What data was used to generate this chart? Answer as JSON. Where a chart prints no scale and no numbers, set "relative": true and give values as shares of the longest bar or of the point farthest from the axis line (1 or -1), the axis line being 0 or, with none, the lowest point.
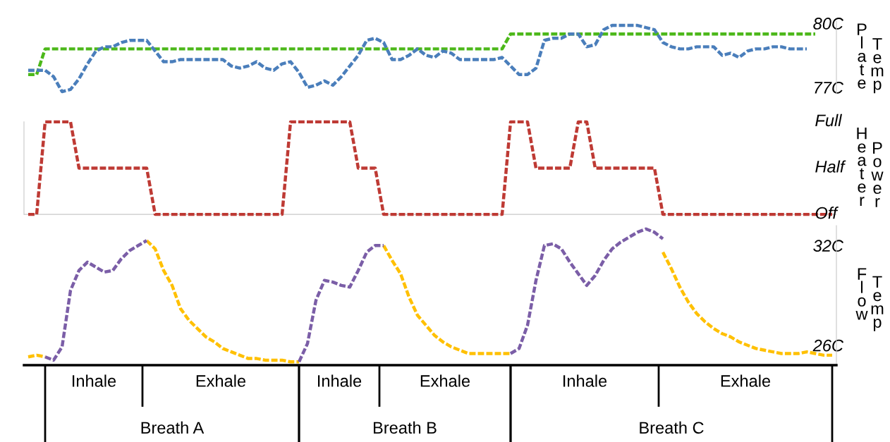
{
  "chart_data": [
    {
      "type": "line",
      "ylabel": "Plate Temp",
      "line_style": "dashed",
      "tick_labels": "y",
      "ylim": [
        76.7,
        80.1
      ],
      "yticks": [
        {
          "value": 77,
          "label": "77C"
        },
        {
          "value": 80,
          "label": "80C"
        }
      ],
      "categories": [
        null,
        null,
        null,
        null,
        null,
        null,
        null,
        null,
        null,
        null,
        null,
        null,
        null,
        null,
        null,
        null,
        null,
        null,
        null,
        null,
        null,
        null,
        null,
        null,
        null,
        null,
        null,
        null,
        null,
        null,
        null,
        null,
        null,
        null,
        null,
        null,
        null,
        null,
        null,
        null,
        null,
        null,
        null,
        null,
        null,
        null,
        null,
        null,
        null,
        null,
        null,
        null,
        null,
        null,
        null,
        null,
        null,
        null,
        null,
        null,
        null,
        null,
        null,
        null,
        null,
        null,
        null,
        null,
        null,
        null,
        null,
        null,
        null,
        null,
        null,
        null,
        null,
        null,
        null,
        null,
        null,
        null,
        null,
        null,
        null,
        null,
        null,
        null,
        null,
        null,
        null,
        null,
        null,
        null,
        null,
        null
      ],
      "series": [
        {
          "color": "#4cb81a",
          "values": [
            77.6,
            77.6,
            78.8,
            78.8,
            78.8,
            78.8,
            78.8,
            78.8,
            78.8,
            78.8,
            78.8,
            78.8,
            78.8,
            78.8,
            78.8,
            78.8,
            78.8,
            78.8,
            78.8,
            78.8,
            78.8,
            78.8,
            78.8,
            78.8,
            78.8,
            78.8,
            78.8,
            78.8,
            78.8,
            78.8,
            78.8,
            78.8,
            78.8,
            78.8,
            78.8,
            78.8,
            78.8,
            78.8,
            78.8,
            78.8,
            78.8,
            78.8,
            78.8,
            78.8,
            78.8,
            78.8,
            78.8,
            78.8,
            78.8,
            78.8,
            78.8,
            78.8,
            78.8,
            78.8,
            78.8,
            78.8,
            78.8,
            79.5,
            79.5,
            79.5,
            79.5,
            79.5,
            79.5,
            79.5,
            79.5,
            79.5,
            79.5,
            79.5,
            79.5,
            79.5,
            79.5,
            79.5,
            79.5,
            79.5,
            79.5,
            79.5,
            79.5,
            79.5,
            79.5,
            79.5,
            79.5,
            79.5,
            79.5,
            79.5,
            79.5,
            79.5,
            79.5,
            79.5,
            79.5,
            79.5,
            79.5,
            79.5,
            79.5,
            79.5,
            null,
            null
          ]
        },
        {
          "color": "#4a7ebb",
          "values": [
            77.8,
            77.8,
            77.8,
            77.5,
            76.8,
            76.9,
            77.4,
            78.1,
            78.7,
            78.9,
            78.9,
            79.1,
            79.2,
            79.2,
            79.2,
            78.7,
            78.2,
            78.2,
            78.3,
            78.3,
            78.3,
            78.3,
            78.3,
            78.3,
            78.0,
            77.9,
            78.0,
            78.2,
            77.9,
            77.8,
            78.1,
            78.2,
            77.7,
            77.0,
            77.1,
            77.3,
            77.1,
            77.5,
            78.0,
            78.5,
            79.2,
            79.3,
            79.1,
            78.3,
            78.3,
            78.5,
            78.8,
            78.5,
            78.4,
            78.7,
            78.6,
            78.3,
            78.3,
            78.3,
            78.3,
            78.3,
            78.4,
            78.0,
            77.6,
            77.6,
            77.9,
            79.2,
            79.3,
            79.3,
            79.5,
            79.5,
            78.9,
            79.0,
            79.7,
            79.9,
            79.9,
            79.9,
            79.9,
            79.8,
            79.7,
            79.1,
            78.9,
            78.8,
            78.8,
            78.9,
            78.9,
            78.9,
            78.5,
            78.6,
            78.4,
            78.7,
            78.8,
            78.8,
            78.9,
            78.9,
            78.8,
            78.8,
            78.8,
            null,
            null,
            null
          ]
        }
      ]
    },
    {
      "type": "line",
      "ylabel": "Heater Power",
      "line_style": "dashed",
      "relative": true,
      "annotations": [
        "Full",
        "Half",
        "Off"
      ],
      "categories": [
        null,
        null,
        null,
        null,
        null,
        null,
        null,
        null,
        null,
        null,
        null,
        null,
        null,
        null,
        null,
        null,
        null,
        null,
        null,
        null,
        null,
        null,
        null,
        null,
        null,
        null,
        null,
        null,
        null,
        null,
        null,
        null,
        null,
        null,
        null,
        null,
        null,
        null,
        null,
        null,
        null,
        null,
        null,
        null,
        null,
        null,
        null,
        null,
        null,
        null,
        null,
        null,
        null,
        null,
        null,
        null,
        null,
        null,
        null,
        null,
        null,
        null,
        null,
        null,
        null,
        null,
        null,
        null,
        null,
        null,
        null,
        null,
        null,
        null,
        null,
        null,
        null,
        null,
        null,
        null,
        null,
        null,
        null,
        null,
        null,
        null,
        null,
        null,
        null,
        null,
        null,
        null,
        null,
        null,
        null,
        null
      ],
      "series": [
        {
          "color": "#be3a34",
          "values": [
            0,
            0,
            1,
            1,
            1,
            1,
            0.5,
            0.5,
            0.5,
            0.5,
            0.5,
            0.5,
            0.5,
            0.5,
            0.5,
            0,
            0,
            0,
            0,
            0,
            0,
            0,
            0,
            0,
            0,
            0,
            0,
            0,
            0,
            0,
            0,
            1,
            1,
            1,
            1,
            1,
            1,
            1,
            1,
            0.5,
            0.5,
            0.5,
            0,
            0,
            0,
            0,
            0,
            0,
            0,
            0,
            0,
            0,
            0,
            0,
            0,
            0,
            0,
            1,
            1,
            1,
            0.5,
            0.5,
            0.5,
            0.5,
            0.5,
            1,
            1,
            0.5,
            0.5,
            0.5,
            0.5,
            0.5,
            0.5,
            0.5,
            0.5,
            0,
            0,
            0,
            0,
            0,
            0,
            0,
            0,
            0,
            0,
            0,
            0,
            0,
            0,
            0,
            0,
            0,
            0,
            0,
            0,
            0
          ]
        }
      ]
    },
    {
      "type": "line",
      "ylabel": "Flow Temp",
      "line_style": "dashed",
      "tick_labels": "y",
      "ylim": [
        24.8,
        33.2
      ],
      "yticks": [
        {
          "value": 26,
          "label": "26C"
        },
        {
          "value": 32,
          "label": "32C"
        }
      ],
      "categories": [
        null,
        null,
        null,
        null,
        null,
        null,
        null,
        null,
        null,
        null,
        null,
        null,
        null,
        null,
        null,
        null,
        null,
        null,
        null,
        null,
        null,
        null,
        null,
        null,
        null,
        null,
        null,
        null,
        null,
        null,
        null,
        null,
        null,
        null,
        null,
        null,
        null,
        null,
        null,
        null,
        null,
        null,
        null,
        null,
        null,
        null,
        null,
        null,
        null,
        null,
        null,
        null,
        null,
        null,
        null,
        null,
        null,
        null,
        null,
        null,
        null,
        null,
        null,
        null,
        null,
        null,
        null,
        null,
        null,
        null,
        null,
        null,
        null,
        null,
        null,
        null,
        null,
        null,
        null,
        null,
        null,
        null,
        null,
        null,
        null,
        null,
        null,
        null,
        null,
        null,
        null,
        null,
        null,
        null,
        null,
        null
      ],
      "series": [
        {
          "color": "#ffc000",
          "values": [
            25.3,
            25.4,
            25.3,
            null,
            null,
            null,
            null,
            null,
            null,
            null,
            null,
            null,
            null,
            null,
            32.3,
            31.8,
            30.5,
            29.6,
            28.2,
            27.5,
            27.0,
            26.5,
            26.2,
            25.8,
            25.6,
            25.4,
            25.2,
            25.2,
            25.1,
            25.1,
            25.1,
            25.0,
            25.0,
            null,
            null,
            null,
            null,
            null,
            null,
            null,
            null,
            null,
            32.0,
            31.1,
            30.3,
            28.9,
            27.8,
            27.2,
            26.6,
            26.2,
            25.9,
            25.7,
            25.5,
            25.5,
            25.5,
            25.5,
            25.5,
            25.5,
            null,
            null,
            null,
            null,
            null,
            null,
            null,
            null,
            null,
            null,
            null,
            null,
            null,
            null,
            null,
            null,
            null,
            31.6,
            30.6,
            29.5,
            28.6,
            27.9,
            27.4,
            27.0,
            26.7,
            26.5,
            26.2,
            26.0,
            25.8,
            25.7,
            25.6,
            25.5,
            25.5,
            25.5,
            25.6,
            25.5,
            25.4,
            25.4
          ]
        },
        {
          "color": "#7b5ea7",
          "values": [
            null,
            null,
            25.3,
            25.1,
            25.9,
            29.3,
            30.5,
            31.0,
            30.7,
            30.4,
            30.5,
            31.2,
            31.7,
            32.0,
            32.3,
            null,
            null,
            null,
            null,
            null,
            null,
            null,
            null,
            null,
            null,
            null,
            null,
            null,
            null,
            null,
            null,
            null,
            25.0,
            26.1,
            28.7,
            29.9,
            29.8,
            29.6,
            29.5,
            30.5,
            31.6,
            32.0,
            32.0,
            null,
            null,
            null,
            null,
            null,
            null,
            null,
            null,
            null,
            null,
            null,
            null,
            null,
            null,
            25.5,
            25.8,
            27.2,
            29.9,
            32.0,
            32.1,
            31.8,
            31.0,
            30.3,
            29.6,
            30.2,
            31.1,
            31.8,
            32.2,
            32.5,
            32.8,
            33.0,
            32.8,
            32.4,
            null,
            null,
            null,
            null,
            null,
            null,
            null,
            null,
            null,
            null,
            null,
            null,
            null,
            null,
            null,
            null,
            null,
            null,
            null,
            null
          ]
        }
      ],
      "annotations": [
        "Inhale",
        "Exhale",
        "Inhale",
        "Exhale",
        "Inhale",
        "Exhale",
        "Breath A",
        "Breath B",
        "Breath C"
      ]
    }
  ]
}
